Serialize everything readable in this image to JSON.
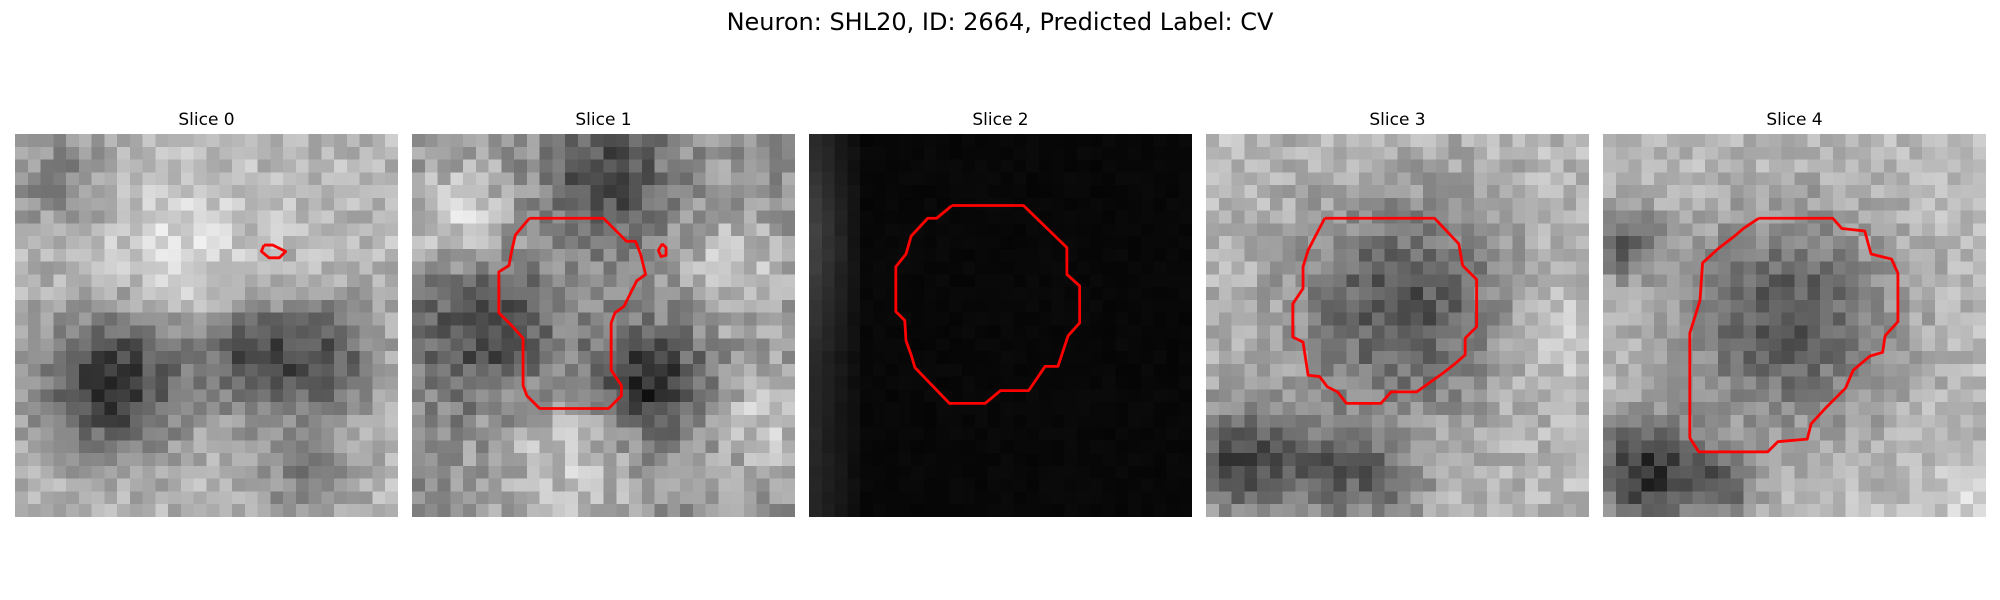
{
  "figure": {
    "title": "Neuron: SHL20, ID: 2664, Predicted Label: CV",
    "contour_color": "#ff0000",
    "colormap": "grayscale"
  },
  "panels": [
    {
      "title": "Slice 0"
    },
    {
      "title": "Slice 1"
    },
    {
      "title": "Slice 2"
    },
    {
      "title": "Slice 3"
    },
    {
      "title": "Slice 4"
    }
  ]
}
